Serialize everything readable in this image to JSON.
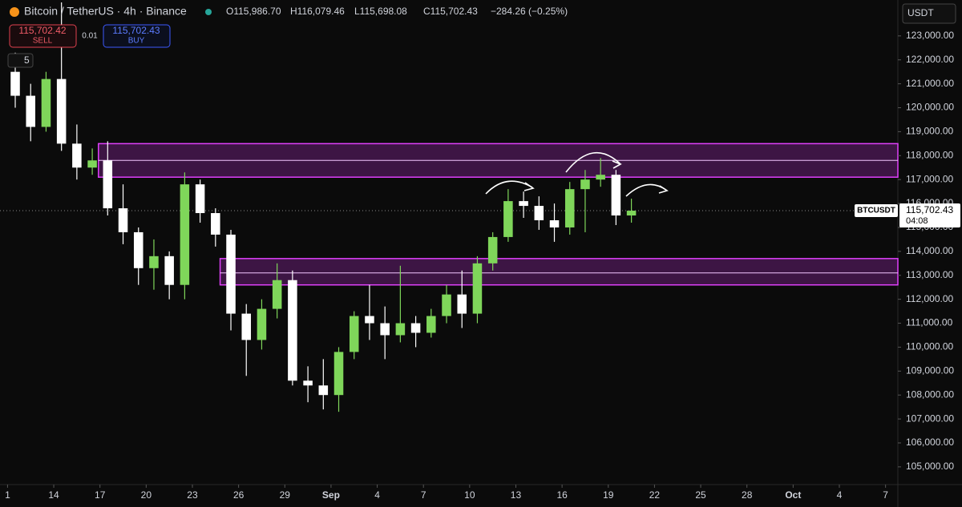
{
  "chart_data": {
    "type": "candlestick",
    "title": "Bitcoin / TetherUS · 4h · Binance",
    "ohlc_labels": [
      "O115,986.70",
      "H116,079.46",
      "L115,698.08",
      "C115,702.43"
    ],
    "change": "−284.26 (−0.25%)",
    "sell": {
      "price": "115,702.42",
      "label": "SELL"
    },
    "spread": "0.01",
    "buy": {
      "price": "115,702.43",
      "label": "BUY"
    },
    "indicators": "5",
    "currency": "USDT",
    "symbol": "BTCUSDT",
    "countdown": "04:08",
    "last_price": {
      "value": 115702.43,
      "label": "115,702.43"
    },
    "up_color": "#7fd65a",
    "down_color": "#ffffff",
    "zone_color": "#e040fb",
    "x": [
      0.5,
      1.5,
      2.5,
      3.5,
      4.5,
      5.5,
      6.5,
      7.5,
      8.5,
      9.5,
      10.5,
      11.5,
      12.5,
      13.5,
      14.5,
      15.5,
      16.5,
      17.5,
      18.5,
      19.5,
      20.5,
      21.5,
      22.5,
      23.5,
      24.5,
      25.5,
      26.5,
      27.5,
      28.5,
      29.5,
      30.5,
      31.5,
      32.5,
      33.5,
      34.5,
      35.5,
      36.5,
      37.5,
      38.5,
      39.5,
      40.5
    ],
    "open": [
      121500,
      120500,
      119200,
      121200,
      118500,
      117500,
      117800,
      115800,
      114800,
      113300,
      113800,
      112600,
      116800,
      115600,
      114700,
      111400,
      110300,
      111600,
      112800,
      108600,
      108400,
      108000,
      109800,
      111300,
      111000,
      110500,
      111000,
      110600,
      111300,
      112200,
      111400,
      113500,
      114600,
      116100,
      115900,
      115300,
      115000,
      116600,
      117000,
      117200,
      115500
    ],
    "high": [
      122300,
      121000,
      121500,
      124400,
      119300,
      118300,
      118600,
      116800,
      115000,
      114500,
      114000,
      117300,
      117000,
      115800,
      114900,
      111800,
      112000,
      113500,
      113200,
      109200,
      109500,
      110000,
      111500,
      112600,
      111700,
      113400,
      111300,
      111600,
      112600,
      113200,
      113800,
      114800,
      116600,
      116500,
      116300,
      116000,
      116900,
      117400,
      117900,
      117400,
      116200
    ],
    "low": [
      120000,
      118600,
      119000,
      118200,
      117000,
      117200,
      115500,
      114300,
      112600,
      112400,
      112000,
      112000,
      115200,
      114200,
      110700,
      108800,
      109900,
      111200,
      108400,
      107700,
      107400,
      107300,
      109500,
      110300,
      109500,
      110200,
      110000,
      110400,
      111000,
      110800,
      111000,
      113200,
      114400,
      115400,
      114900,
      114400,
      114700,
      114800,
      116700,
      115100,
      115200
    ],
    "close": [
      120500,
      119200,
      121200,
      118500,
      117500,
      117800,
      115800,
      114800,
      113300,
      113800,
      112600,
      116800,
      115600,
      114700,
      111400,
      110300,
      111600,
      112800,
      108600,
      108400,
      108000,
      109800,
      111300,
      111000,
      110500,
      111000,
      110600,
      111300,
      112200,
      111400,
      113500,
      114600,
      116100,
      115900,
      115300,
      115000,
      116600,
      117000,
      117200,
      115500,
      115700
    ],
    "zones": [
      {
        "low": 117100,
        "mid": 117800,
        "high": 118500,
        "start": 5.9
      },
      {
        "low": 112600,
        "mid": 113100,
        "high": 113700,
        "start": 13.8
      }
    ],
    "xlim": [
      -0.49,
      57.8
    ],
    "xticks": [
      {
        "value": 0,
        "label": "1"
      },
      {
        "value": 3,
        "label": "14"
      },
      {
        "value": 6,
        "label": "17"
      },
      {
        "value": 9,
        "label": "20"
      },
      {
        "value": 12,
        "label": "23"
      },
      {
        "value": 15,
        "label": "26"
      },
      {
        "value": 18,
        "label": "29"
      },
      {
        "value": 21,
        "label": "Sep"
      },
      {
        "value": 24,
        "label": "4"
      },
      {
        "value": 27,
        "label": "7"
      },
      {
        "value": 30,
        "label": "10"
      },
      {
        "value": 33,
        "label": "13"
      },
      {
        "value": 36,
        "label": "16"
      },
      {
        "value": 39,
        "label": "19"
      },
      {
        "value": 42,
        "label": "22"
      },
      {
        "value": 45,
        "label": "25"
      },
      {
        "value": 48,
        "label": "28"
      },
      {
        "value": 51,
        "label": "Oct"
      },
      {
        "value": 54,
        "label": "4"
      },
      {
        "value": 57,
        "label": "7"
      }
    ],
    "ylim": [
      104260,
      124500
    ],
    "yticks": [
      {
        "value": 105000,
        "label": "105,000.00"
      },
      {
        "value": 106000,
        "label": "106,000.00"
      },
      {
        "value": 107000,
        "label": "107,000.00"
      },
      {
        "value": 108000,
        "label": "108,000.00"
      },
      {
        "value": 109000,
        "label": "109,000.00"
      },
      {
        "value": 110000,
        "label": "110,000.00"
      },
      {
        "value": 111000,
        "label": "111,000.00"
      },
      {
        "value": 112000,
        "label": "112,000.00"
      },
      {
        "value": 113000,
        "label": "113,000.00"
      },
      {
        "value": 114000,
        "label": "114,000.00"
      },
      {
        "value": 115000,
        "label": "115,000.00"
      },
      {
        "value": 116000,
        "label": "116,000.00"
      },
      {
        "value": 117000,
        "label": "117,000.00"
      },
      {
        "value": 118000,
        "label": "118,000.00"
      },
      {
        "value": 119000,
        "label": "119,000.00"
      },
      {
        "value": 120000,
        "label": "120,000.00"
      },
      {
        "value": 121000,
        "label": "121,000.00"
      },
      {
        "value": 122000,
        "label": "122,000.00"
      },
      {
        "value": 123000,
        "label": "123,000.00"
      }
    ]
  }
}
